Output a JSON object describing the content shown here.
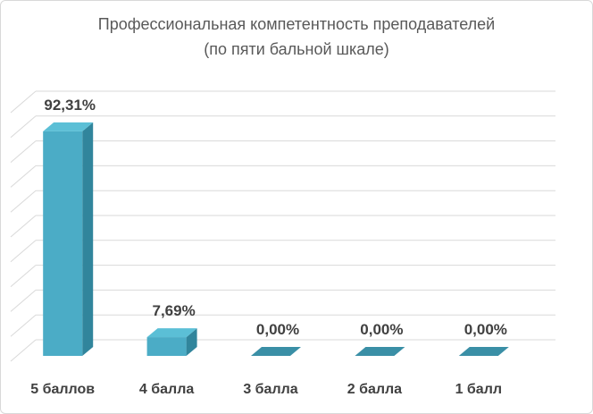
{
  "chart_data": {
    "type": "bar",
    "title_line1": "Профессиональная компетентность преподавателей",
    "title_line2": "(по пяти бальной шкале)",
    "categories": [
      "5 баллов",
      "4 балла",
      "3  балла",
      "2 балла",
      "1 балл"
    ],
    "values": [
      92.31,
      7.69,
      0.0,
      0.0,
      0.0
    ],
    "labels": [
      "92,31%",
      "7,69%",
      "0,00%",
      "0,00%",
      "0,00%"
    ],
    "ylim": [
      0,
      100
    ],
    "grid": true,
    "legend": "none",
    "colors": {
      "bar_front": "#4bacc6",
      "bar_side": "#31859c",
      "bar_top": "#3a8fa6",
      "grid": "#d9d9d9",
      "title": "#595959",
      "label": "#404040"
    }
  }
}
